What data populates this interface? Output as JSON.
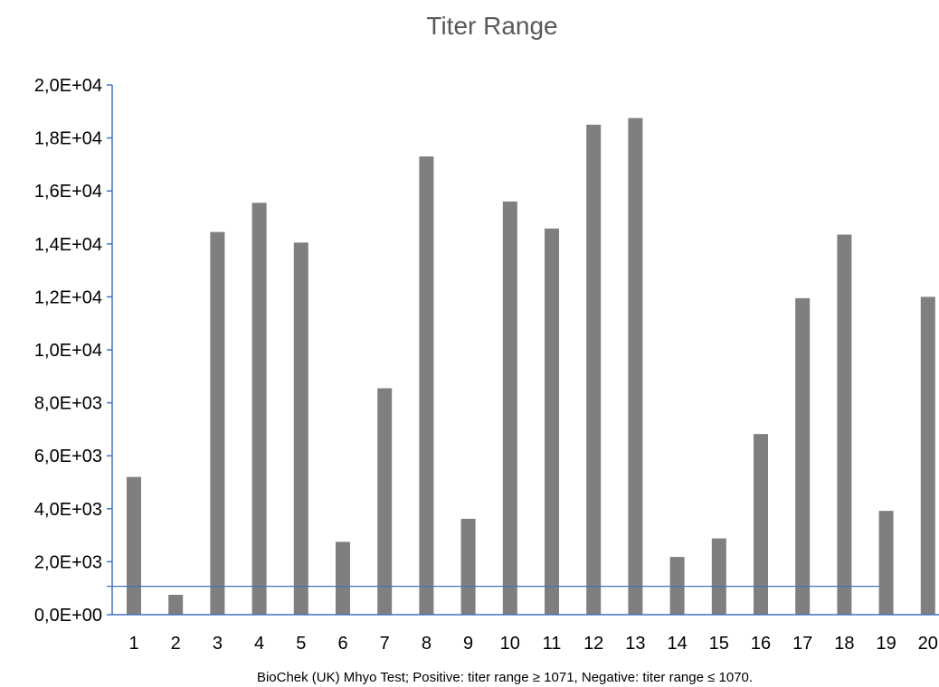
{
  "chart_data": {
    "type": "bar",
    "title": "Titer Range",
    "caption": "BioChek (UK) Mhyo Test; Positive: titer range ≥ 1071, Negative: titer range ≤ 1070.",
    "categories": [
      "1",
      "2",
      "3",
      "4",
      "5",
      "6",
      "7",
      "8",
      "9",
      "10",
      "11",
      "12",
      "13",
      "14",
      "15",
      "16",
      "17",
      "18",
      "19",
      "20"
    ],
    "values": [
      5200,
      750,
      14450,
      15550,
      14050,
      2750,
      8550,
      17300,
      3620,
      15600,
      14580,
      18500,
      18750,
      2180,
      2880,
      6820,
      11950,
      14350,
      3920,
      12000
    ],
    "ylim": [
      0,
      20000
    ],
    "yticks": [
      0,
      2000,
      4000,
      6000,
      8000,
      10000,
      12000,
      14000,
      16000,
      18000,
      20000
    ],
    "ytick_labels": [
      "0,0E+00",
      "2,0E+03",
      "4,0E+03",
      "6,0E+03",
      "8,0E+03",
      "1,0E+04",
      "1,2E+04",
      "1,4E+04",
      "1,6E+04",
      "1,8E+04",
      "2,0E+04"
    ],
    "threshold": 1071,
    "grid": false,
    "bar_color": "#7f7f7f",
    "axis_color": "#4472c4",
    "threshold_color": "#4472c4",
    "title_color": "#595959"
  }
}
